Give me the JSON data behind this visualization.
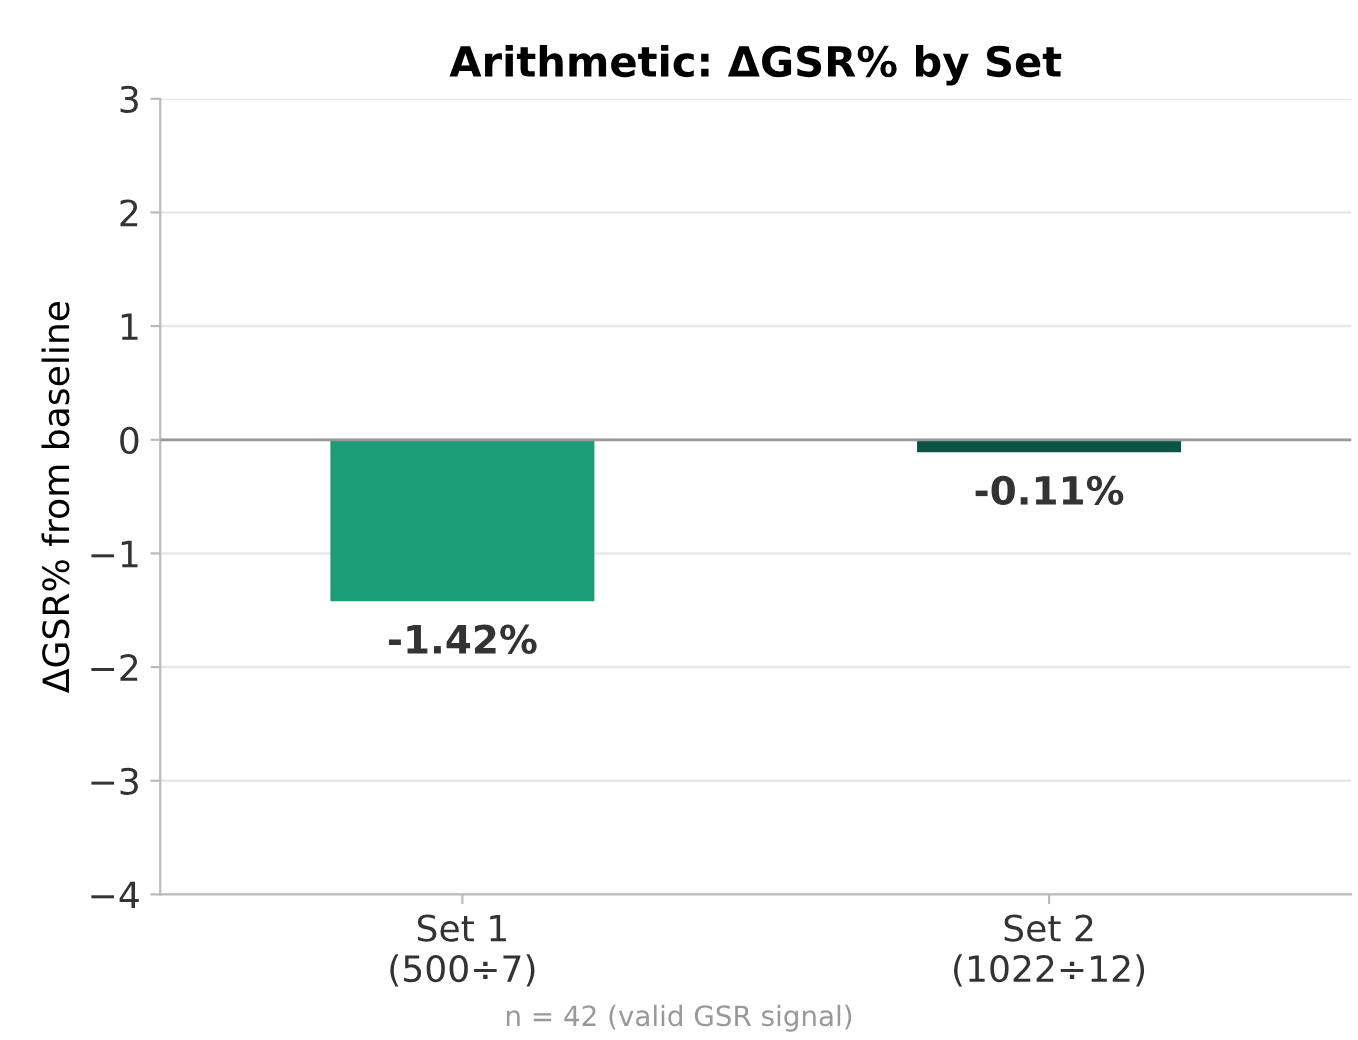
{
  "chart_data": {
    "type": "bar",
    "title": "Arithmetic: ΔGSR% by Set",
    "ylabel": "ΔGSR% from baseline",
    "categories": [
      "Set 1\n(500÷7)",
      "Set 2\n(1022÷12)"
    ],
    "values": [
      -1.42,
      -0.11
    ],
    "colors": [
      "#1b9e77",
      "#0b5345"
    ],
    "value_labels": [
      "-1.42%",
      "-0.11%"
    ],
    "ylim": [
      -4,
      3
    ],
    "yticks": [
      -4,
      -3,
      -2,
      -1,
      0,
      1,
      2,
      3
    ],
    "grid": "y",
    "ref_lines": [
      {
        "axis": "y",
        "value": 0,
        "color": "#999999"
      }
    ],
    "annotations": [
      "n = 42 (valid GSR signal)"
    ]
  }
}
